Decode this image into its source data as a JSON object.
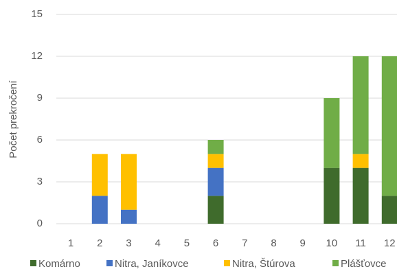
{
  "chart_data": {
    "type": "stacked_bar",
    "y_label": "Počet prekročení",
    "categories": [
      "1",
      "2",
      "3",
      "4",
      "5",
      "6",
      "7",
      "8",
      "9",
      "10",
      "11",
      "12"
    ],
    "series": [
      {
        "name": "Komárno",
        "color": "#3f6b2c",
        "values": [
          0,
          0,
          0,
          0,
          0,
          2,
          0,
          0,
          0,
          4,
          4,
          2
        ]
      },
      {
        "name": "Nitra, Janíkovce",
        "color": "#4472c4",
        "values": [
          0,
          2,
          1,
          0,
          0,
          2,
          0,
          0,
          0,
          0,
          0,
          0
        ]
      },
      {
        "name": "Nitra, Štúrova",
        "color": "#ffc000",
        "values": [
          0,
          3,
          4,
          0,
          0,
          1,
          0,
          0,
          0,
          0,
          1,
          0
        ]
      },
      {
        "name": "Plášťovce",
        "color": "#70ad47",
        "values": [
          0,
          0,
          0,
          0,
          0,
          1,
          0,
          0,
          0,
          5,
          7,
          10
        ]
      }
    ],
    "ylim": [
      0,
      15
    ],
    "yticks": [
      0,
      3,
      6,
      9,
      12,
      15
    ],
    "grid": true,
    "legend": "bottom"
  }
}
